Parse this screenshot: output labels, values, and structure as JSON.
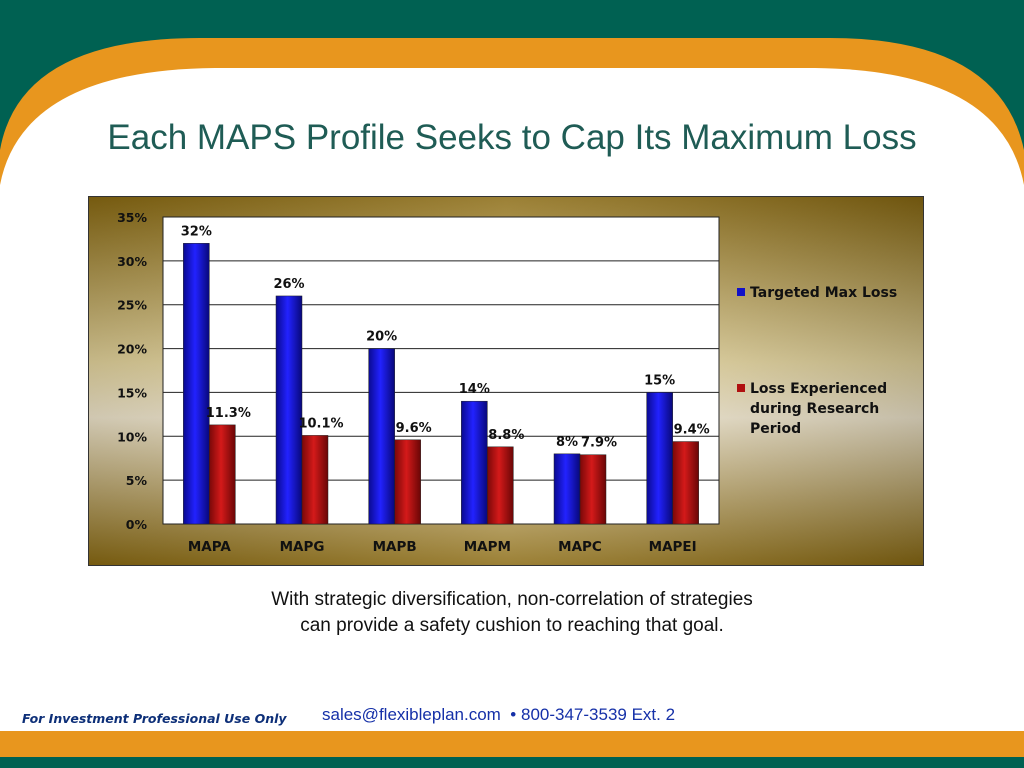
{
  "slide": {
    "title": "Each MAPS Profile Seeks to Cap Its Maximum Loss",
    "caption_line1": "With strategic diversification, non-correlation of strategies",
    "caption_line2": "can provide a safety cushion to reaching that goal.",
    "footer_note": "For Investment Professional Use Only",
    "footer_email": "sales@flexibleplan.com",
    "footer_separator": "•",
    "footer_phone": "800-347-3539 Ext. 2"
  },
  "colors": {
    "background_teal": "#006152",
    "accent_orange": "#e8961e",
    "title_text": "#1f5c55",
    "series_blue": "#1010c8",
    "series_red": "#b01010",
    "chart_frame_gold": "#8a6a12"
  },
  "chart_data": {
    "type": "bar",
    "categories": [
      "MAPA",
      "MAPG",
      "MAPB",
      "MAPM",
      "MAPC",
      "MAPEI"
    ],
    "series": [
      {
        "name": "Targeted Max Loss",
        "values": [
          32,
          26,
          20,
          14,
          8,
          15
        ],
        "labels": [
          "32%",
          "26%",
          "20%",
          "14%",
          "8%",
          "15%"
        ]
      },
      {
        "name": "Loss Experienced during Research Period",
        "values": [
          11.3,
          10.1,
          9.6,
          8.8,
          7.9,
          9.4
        ],
        "labels": [
          "11.3%",
          "10.1%",
          "9.6%",
          "8.8%",
          "7.9%",
          "9.4%"
        ]
      }
    ],
    "ylim": [
      0,
      35
    ],
    "yticks": [
      "0%",
      "5%",
      "10%",
      "15%",
      "20%",
      "25%",
      "30%",
      "35%"
    ],
    "grid": true,
    "legend_position": "right",
    "legend_lines": [
      [
        "Targeted Max Loss"
      ],
      [
        "Loss Experienced",
        "during Research",
        "Period"
      ]
    ]
  }
}
